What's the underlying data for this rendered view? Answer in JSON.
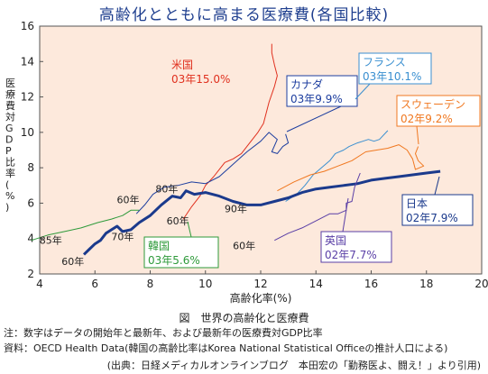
{
  "page_title": "高齢化とともに高まる医療費(各国比較)",
  "caption": "図　世界の高齢化と医療費",
  "note1": "注：数字はデータの開始年と最新年、および最新年の医療費対GDP比率",
  "note2": "資料：OECD Health Data(韓国の高齢比率はKorea National Statistical Officeの推計人口による)",
  "credit": "(出典：日経メディカルオンラインブログ　本田宏の「勤務医よ、闘え！」より引用)",
  "colors": {
    "background": "#fde9dc",
    "us": "#e0301e",
    "canada": "#1d3e9f",
    "france": "#3a8fd0",
    "sweden": "#f07820",
    "japan": "#1b3a8c",
    "korea": "#2e9a3a",
    "uk": "#5a3fa6"
  },
  "chart_data": {
    "type": "line",
    "title": "",
    "xlabel": "高齢化率(%)",
    "ylabel": "医療費対GDP比率(%)",
    "xlim": [
      4,
      20
    ],
    "ylim": [
      2,
      16
    ],
    "xticks": [
      "4",
      "6",
      "8",
      "10",
      "12",
      "14",
      "16",
      "18",
      "20"
    ],
    "yticks": [
      "2",
      "4",
      "6",
      "8",
      "10",
      "12",
      "14",
      "16"
    ],
    "grid": false,
    "series": [
      {
        "name": "米国",
        "color": "#e0301e",
        "width": 1,
        "label": "米国",
        "value_label": "03年15.0%",
        "points": [
          [
            9.2,
            5.1
          ],
          [
            9.5,
            5.8
          ],
          [
            9.8,
            6.4
          ],
          [
            10.0,
            7.0
          ],
          [
            10.3,
            7.5
          ],
          [
            10.5,
            7.9
          ],
          [
            10.7,
            8.3
          ],
          [
            11.0,
            8.5
          ],
          [
            11.3,
            8.8
          ],
          [
            11.6,
            9.4
          ],
          [
            11.9,
            10.0
          ],
          [
            12.1,
            10.5
          ],
          [
            12.3,
            11.7
          ],
          [
            12.5,
            12.6
          ],
          [
            12.6,
            13.2
          ],
          [
            12.5,
            13.8
          ],
          [
            12.4,
            14.5
          ],
          [
            12.4,
            15.0
          ]
        ]
      },
      {
        "name": "カナダ",
        "color": "#1d3e9f",
        "width": 1,
        "label": "カナダ",
        "value_label": "03年9.9%",
        "points": [
          [
            7.5,
            5.4
          ],
          [
            7.8,
            5.9
          ],
          [
            8.1,
            6.5
          ],
          [
            8.5,
            6.9
          ],
          [
            9.0,
            7.0
          ],
          [
            9.5,
            7.2
          ],
          [
            10.0,
            7.1
          ],
          [
            10.5,
            7.5
          ],
          [
            11.0,
            8.2
          ],
          [
            11.5,
            8.9
          ],
          [
            12.0,
            9.5
          ],
          [
            12.3,
            10.0
          ],
          [
            12.6,
            9.6
          ],
          [
            12.4,
            8.9
          ],
          [
            12.6,
            8.8
          ],
          [
            12.8,
            9.2
          ],
          [
            13.0,
            9.4
          ],
          [
            12.9,
            9.9
          ]
        ]
      },
      {
        "name": "フランス",
        "color": "#3a8fd0",
        "width": 1,
        "label": "フランス",
        "value_label": "03年10.1%",
        "points": [
          [
            12.9,
            6.1
          ],
          [
            13.3,
            6.5
          ],
          [
            13.6,
            7.0
          ],
          [
            13.9,
            7.6
          ],
          [
            14.2,
            8.0
          ],
          [
            14.5,
            8.4
          ],
          [
            14.7,
            8.8
          ],
          [
            15.0,
            9.0
          ],
          [
            15.2,
            9.2
          ],
          [
            15.5,
            9.4
          ],
          [
            15.7,
            9.5
          ],
          [
            15.9,
            9.6
          ],
          [
            16.1,
            9.5
          ],
          [
            16.3,
            9.6
          ],
          [
            16.6,
            10.1
          ]
        ]
      },
      {
        "name": "スウェーデン",
        "color": "#f07820",
        "width": 1,
        "label": "スウェーデン",
        "value_label": "02年9.2%",
        "points": [
          [
            12.6,
            6.7
          ],
          [
            13.2,
            7.2
          ],
          [
            13.8,
            7.6
          ],
          [
            14.3,
            7.8
          ],
          [
            14.8,
            8.1
          ],
          [
            15.3,
            8.4
          ],
          [
            15.8,
            8.9
          ],
          [
            16.2,
            9.0
          ],
          [
            16.6,
            9.1
          ],
          [
            17.0,
            9.3
          ],
          [
            17.3,
            9.0
          ],
          [
            17.5,
            8.5
          ],
          [
            17.6,
            7.9
          ],
          [
            17.9,
            8.1
          ],
          [
            17.7,
            8.4
          ],
          [
            17.6,
            8.8
          ],
          [
            17.7,
            9.2
          ]
        ]
      },
      {
        "name": "日本",
        "color": "#1b3a8c",
        "width": 3,
        "label": "日本",
        "value_label": "02年7.9%",
        "points": [
          [
            5.6,
            3.1
          ],
          [
            5.8,
            3.4
          ],
          [
            6.0,
            3.7
          ],
          [
            6.2,
            3.9
          ],
          [
            6.4,
            4.3
          ],
          [
            6.6,
            4.5
          ],
          [
            6.8,
            4.7
          ],
          [
            7.0,
            4.4
          ],
          [
            7.3,
            4.5
          ],
          [
            7.6,
            4.9
          ],
          [
            8.0,
            5.3
          ],
          [
            8.4,
            5.9
          ],
          [
            8.8,
            6.4
          ],
          [
            9.1,
            6.3
          ],
          [
            9.3,
            6.7
          ],
          [
            9.6,
            6.5
          ],
          [
            10.0,
            6.6
          ],
          [
            10.5,
            6.4
          ],
          [
            11.0,
            6.1
          ],
          [
            11.5,
            5.9
          ],
          [
            12.0,
            5.9
          ],
          [
            12.5,
            6.1
          ],
          [
            13.0,
            6.3
          ],
          [
            13.5,
            6.6
          ],
          [
            14.0,
            6.8
          ],
          [
            14.5,
            6.9
          ],
          [
            15.0,
            7.0
          ],
          [
            15.5,
            7.1
          ],
          [
            16.0,
            7.3
          ],
          [
            16.5,
            7.4
          ],
          [
            17.0,
            7.5
          ],
          [
            17.5,
            7.6
          ],
          [
            18.0,
            7.7
          ],
          [
            18.5,
            7.8
          ]
        ]
      },
      {
        "name": "韓国",
        "color": "#2e9a3a",
        "width": 1,
        "label": "韓国",
        "value_label": "03年5.6%",
        "points": [
          [
            3.7,
            3.9
          ],
          [
            4.3,
            4.2
          ],
          [
            4.9,
            4.4
          ],
          [
            5.5,
            4.6
          ],
          [
            6.1,
            4.9
          ],
          [
            6.6,
            5.1
          ],
          [
            7.0,
            5.3
          ],
          [
            7.3,
            5.6
          ],
          [
            7.6,
            5.6
          ]
        ]
      },
      {
        "name": "英国",
        "color": "#5a3fa6",
        "width": 1,
        "label": "英国",
        "value_label": "02年7.7%",
        "points": [
          [
            12.5,
            3.9
          ],
          [
            13.0,
            4.3
          ],
          [
            13.5,
            4.6
          ],
          [
            14.0,
            5.0
          ],
          [
            14.5,
            5.4
          ],
          [
            14.8,
            5.4
          ],
          [
            15.1,
            5.6
          ],
          [
            15.1,
            6.0
          ],
          [
            15.3,
            6.1
          ],
          [
            15.4,
            6.9
          ],
          [
            15.6,
            7.7
          ]
        ]
      }
    ],
    "year_labels": [
      {
        "text": "85年",
        "x": 4.4,
        "y": 3.7
      },
      {
        "text": "60年",
        "x": 5.2,
        "y": 2.5
      },
      {
        "text": "70年",
        "x": 7.0,
        "y": 3.9
      },
      {
        "text": "60年",
        "x": 7.2,
        "y": 6.0
      },
      {
        "text": "80年",
        "x": 8.6,
        "y": 6.6
      },
      {
        "text": "60年",
        "x": 9.0,
        "y": 4.8
      },
      {
        "text": "90年",
        "x": 11.1,
        "y": 5.5
      },
      {
        "text": "60年",
        "x": 11.4,
        "y": 3.4
      }
    ],
    "callouts": [
      {
        "series": "米国",
        "color": "#e0301e",
        "box": false
      },
      {
        "series": "カナダ",
        "color": "#1d3e9f",
        "box": true
      },
      {
        "series": "フランス",
        "color": "#3a8fd0",
        "box": true
      },
      {
        "series": "スウェーデン",
        "color": "#f07820",
        "box": true
      },
      {
        "series": "日本",
        "color": "#1b3a8c",
        "box": true
      },
      {
        "series": "韓国",
        "color": "#2e9a3a",
        "box": true
      },
      {
        "series": "英国",
        "color": "#5a3fa6",
        "box": true
      }
    ]
  }
}
